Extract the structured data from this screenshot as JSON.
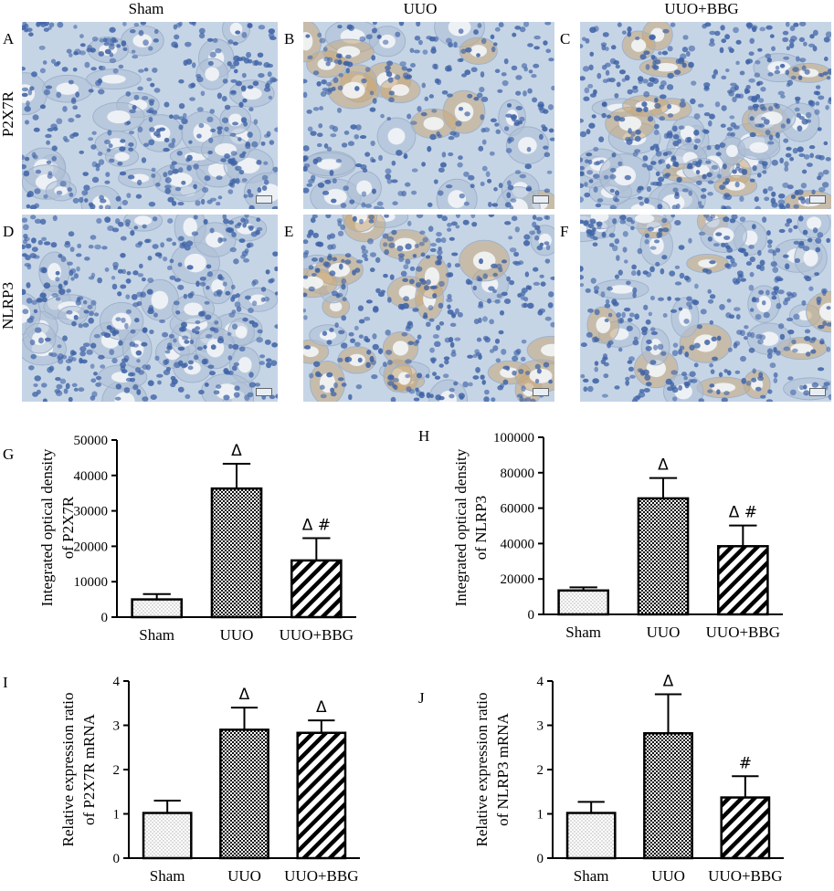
{
  "columns": [
    "Sham",
    "UUO",
    "UUO+BBG"
  ],
  "rows": [
    "P2X7R",
    "NLRP3"
  ],
  "panel_letters": [
    "A",
    "B",
    "C",
    "D",
    "E",
    "F"
  ],
  "colors": {
    "tissue_blue": "#c6d5e6",
    "nucleus_blue": "#3f63a6",
    "stain_brown": "#c8a878",
    "lumen_white": "#f3f5f7",
    "bar_stroke": "#000000"
  },
  "chart_data": [
    {
      "type": "bar",
      "panel": "G",
      "categories": [
        "Sham",
        "UUO",
        "UUO+BBG"
      ],
      "values": [
        5000,
        36300,
        16000
      ],
      "errors": [
        1500,
        7000,
        6300
      ],
      "annotations": [
        "",
        "Δ",
        "Δ #"
      ],
      "ylabel_lines": [
        "Integrated optical density",
        "of P2X7R"
      ],
      "ylim": [
        0,
        50000
      ],
      "yticks": [
        "0",
        "10000",
        "20000",
        "30000",
        "40000",
        "50000"
      ],
      "fill_patterns": [
        "dots",
        "checker",
        "diagonal"
      ],
      "grid": false
    },
    {
      "type": "bar",
      "panel": "H",
      "categories": [
        "Sham",
        "UUO",
        "UUO+BBG"
      ],
      "values": [
        13500,
        65500,
        38500
      ],
      "errors": [
        1800,
        11500,
        11700
      ],
      "annotations": [
        "",
        "Δ",
        "Δ #"
      ],
      "ylabel_lines": [
        "Integrated optical density",
        "of NLRP3"
      ],
      "ylim": [
        0,
        100000
      ],
      "yticks": [
        "0",
        "20000",
        "40000",
        "60000",
        "80000",
        "100000"
      ],
      "fill_patterns": [
        "dots",
        "checker",
        "diagonal"
      ],
      "grid": false
    },
    {
      "type": "bar",
      "panel": "I",
      "categories": [
        "Sham",
        "UUO",
        "UUO+BBG"
      ],
      "values": [
        1.02,
        2.9,
        2.83
      ],
      "errors": [
        0.28,
        0.5,
        0.28
      ],
      "annotations": [
        "",
        "Δ",
        "Δ"
      ],
      "ylabel_lines": [
        "Relative expression ratio",
        "of P2X7R mRNA"
      ],
      "ylim": [
        0,
        4
      ],
      "yticks": [
        "0",
        "1",
        "2",
        "3",
        "4"
      ],
      "fill_patterns": [
        "dots",
        "checker",
        "diagonal"
      ],
      "grid": false
    },
    {
      "type": "bar",
      "panel": "J",
      "categories": [
        "Sham",
        "UUO",
        "UUO+BBG"
      ],
      "values": [
        1.02,
        2.82,
        1.37
      ],
      "errors": [
        0.25,
        0.88,
        0.48
      ],
      "annotations": [
        "",
        "Δ",
        "#"
      ],
      "ylabel_lines": [
        "Relative expression ratio",
        "of NLRP3 mRNA"
      ],
      "ylim": [
        0,
        4
      ],
      "yticks": [
        "0",
        "1",
        "2",
        "3",
        "4"
      ],
      "fill_patterns": [
        "dots",
        "checker",
        "diagonal"
      ],
      "grid": false
    }
  ]
}
